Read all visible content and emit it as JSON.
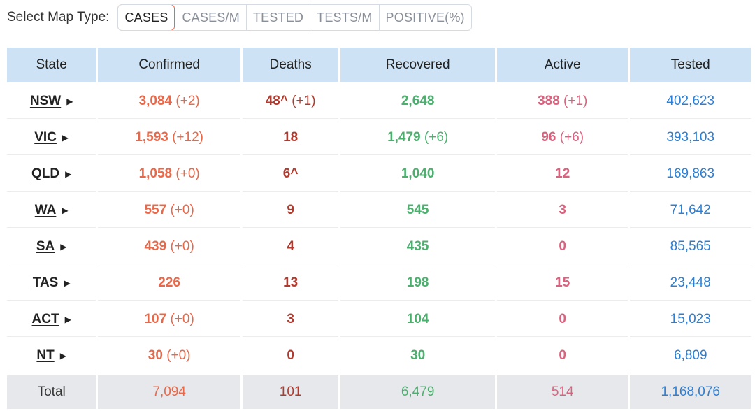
{
  "toolbar": {
    "label": "Select Map Type:",
    "options": [
      "CASES",
      "CASES/M",
      "TESTED",
      "TESTS/M",
      "POSITIVE(%)"
    ],
    "selected": "CASES"
  },
  "colors": {
    "confirmed": "#e8684a",
    "deaths": "#b03a2e",
    "recovered": "#4caf6e",
    "active": "#d9637e",
    "tested": "#2d7fd3",
    "header_bg": "#cde3f5"
  },
  "table": {
    "headers": [
      "State",
      "Confirmed",
      "Deaths",
      "Recovered",
      "Active",
      "Tested"
    ],
    "rows": [
      {
        "state": "NSW",
        "confirmed": "3,084",
        "confirmed_delta": "(+2)",
        "deaths": "48^",
        "deaths_delta": "(+1)",
        "recovered": "2,648",
        "recovered_delta": "",
        "active": "388",
        "active_delta": "(+1)",
        "tested": "402,623"
      },
      {
        "state": "VIC",
        "confirmed": "1,593",
        "confirmed_delta": "(+12)",
        "deaths": "18",
        "deaths_delta": "",
        "recovered": "1,479",
        "recovered_delta": "(+6)",
        "active": "96",
        "active_delta": "(+6)",
        "tested": "393,103"
      },
      {
        "state": "QLD",
        "confirmed": "1,058",
        "confirmed_delta": "(+0)",
        "deaths": "6^",
        "deaths_delta": "",
        "recovered": "1,040",
        "recovered_delta": "",
        "active": "12",
        "active_delta": "",
        "tested": "169,863"
      },
      {
        "state": "WA",
        "confirmed": "557",
        "confirmed_delta": "(+0)",
        "deaths": "9",
        "deaths_delta": "",
        "recovered": "545",
        "recovered_delta": "",
        "active": "3",
        "active_delta": "",
        "tested": "71,642"
      },
      {
        "state": "SA",
        "confirmed": "439",
        "confirmed_delta": "(+0)",
        "deaths": "4",
        "deaths_delta": "",
        "recovered": "435",
        "recovered_delta": "",
        "active": "0",
        "active_delta": "",
        "tested": "85,565"
      },
      {
        "state": "TAS",
        "confirmed": "226",
        "confirmed_delta": "",
        "deaths": "13",
        "deaths_delta": "",
        "recovered": "198",
        "recovered_delta": "",
        "active": "15",
        "active_delta": "",
        "tested": "23,448"
      },
      {
        "state": "ACT",
        "confirmed": "107",
        "confirmed_delta": "(+0)",
        "deaths": "3",
        "deaths_delta": "",
        "recovered": "104",
        "recovered_delta": "",
        "active": "0",
        "active_delta": "",
        "tested": "15,023"
      },
      {
        "state": "NT",
        "confirmed": "30",
        "confirmed_delta": "(+0)",
        "deaths": "0",
        "deaths_delta": "",
        "recovered": "30",
        "recovered_delta": "",
        "active": "0",
        "active_delta": "",
        "tested": "6,809"
      }
    ],
    "total": {
      "label": "Total",
      "confirmed": "7,094",
      "deaths": "101",
      "recovered": "6,479",
      "active": "514",
      "tested": "1,168,076"
    }
  }
}
